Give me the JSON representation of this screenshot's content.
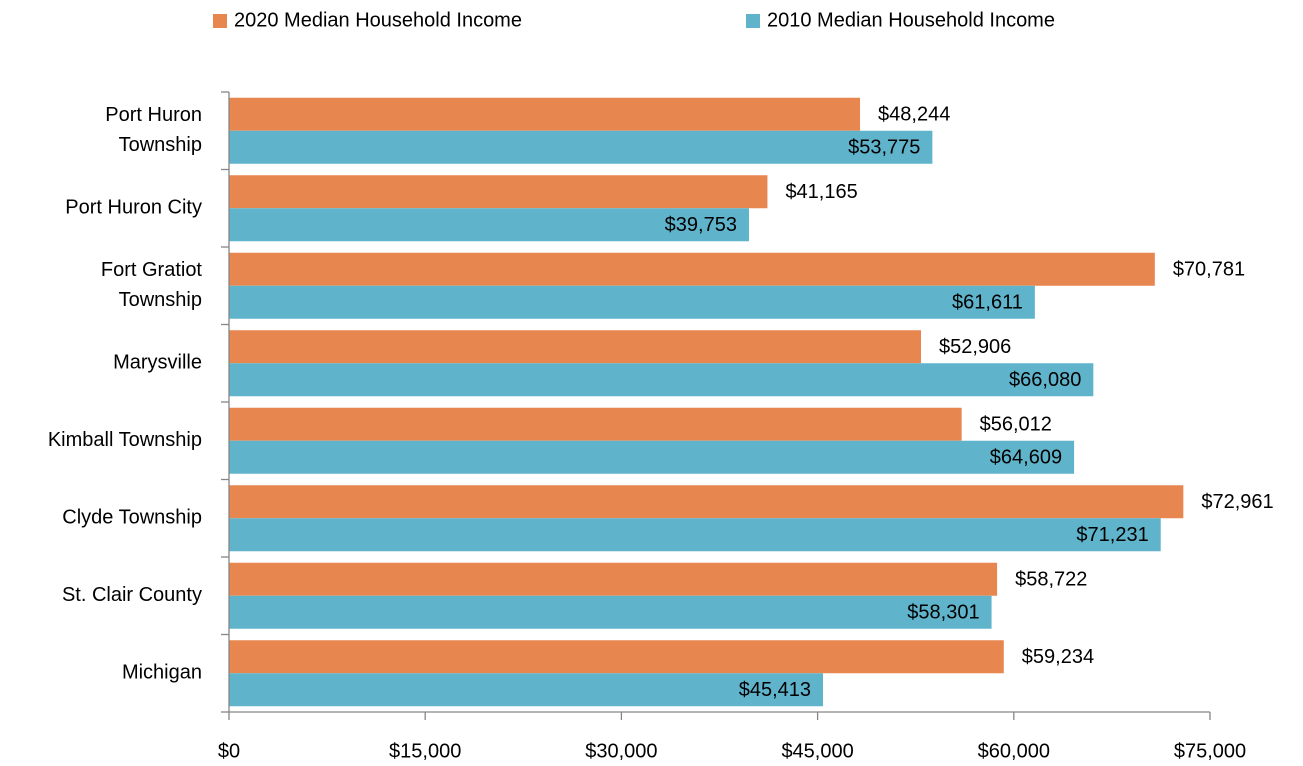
{
  "chart_data": {
    "type": "bar",
    "orientation": "horizontal",
    "categories": [
      "Port Huron\nTownship",
      "Port Huron City",
      "Fort Gratiot\nTownship",
      "Marysville",
      "Kimball Township",
      "Clyde Township",
      "St. Clair County",
      "Michigan"
    ],
    "series": [
      {
        "name": "2020 Median Household Income",
        "color": "#e8864f",
        "values": [
          48244,
          41165,
          70781,
          52906,
          56012,
          72961,
          58722,
          59234
        ],
        "value_labels": [
          "$48,244",
          "$41,165",
          "$70,781",
          "$52,906",
          "$56,012",
          "$72,961",
          "$58,722",
          "$59,234"
        ]
      },
      {
        "name": "2010 Median Household Income",
        "color": "#5fb4cb",
        "values": [
          53775,
          39753,
          61611,
          66080,
          64609,
          71231,
          58301,
          45413
        ],
        "value_labels": [
          "$53,775",
          "$39,753",
          "$61,611",
          "$66,080",
          "$64,609",
          "$71,231",
          "$58,301",
          "$45,413"
        ]
      }
    ],
    "xlim": [
      0,
      75000
    ],
    "xticks": [
      {
        "value": 0,
        "label": "$0"
      },
      {
        "value": 15000,
        "label": "$15,000"
      },
      {
        "value": 30000,
        "label": "$30,000"
      },
      {
        "value": 45000,
        "label": "$45,000"
      },
      {
        "value": 60000,
        "label": "$60,000"
      },
      {
        "value": 75000,
        "label": "$75,000"
      }
    ],
    "legend": "top"
  }
}
